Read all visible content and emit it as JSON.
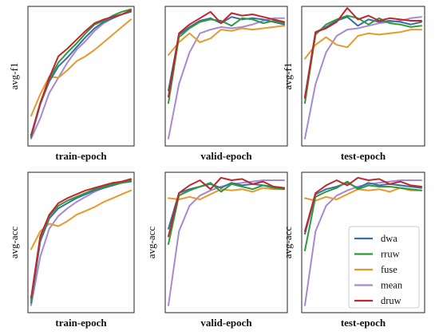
{
  "colors": {
    "dwa": "#3a6ea5",
    "rruw": "#2e9b3a",
    "fuse": "#e69a2e",
    "mean": "#a58ad0",
    "druw": "#c0272d"
  },
  "legend": {
    "placement": "bottom-right of last panel",
    "entries": [
      "dwa",
      "rruw",
      "fuse",
      "mean",
      "druw"
    ]
  },
  "chart_data": [
    {
      "type": "line",
      "title": "",
      "xlabel": "train-epoch",
      "ylabel": "avg-f1",
      "ylim": [
        0,
        1
      ],
      "x": [
        1,
        2,
        3,
        4,
        5,
        6,
        7,
        8,
        9,
        10,
        11,
        12
      ],
      "grid": false,
      "series": [
        {
          "name": "dwa",
          "values": [
            0.03,
            0.29,
            0.47,
            0.59,
            0.66,
            0.74,
            0.82,
            0.89,
            0.94,
            0.97,
            1.0,
            1.02
          ]
        },
        {
          "name": "rruw",
          "values": [
            0.04,
            0.3,
            0.49,
            0.62,
            0.7,
            0.77,
            0.85,
            0.92,
            0.95,
            0.99,
            1.02,
            1.04
          ]
        },
        {
          "name": "fuse",
          "values": [
            0.2,
            0.37,
            0.51,
            0.5,
            0.56,
            0.63,
            0.67,
            0.72,
            0.78,
            0.84,
            0.9,
            0.96
          ]
        },
        {
          "name": "mean",
          "values": [
            0.02,
            0.18,
            0.38,
            0.5,
            0.62,
            0.72,
            0.79,
            0.87,
            0.93,
            0.97,
            1.0,
            1.03
          ]
        },
        {
          "name": "druw",
          "values": [
            0.05,
            0.3,
            0.5,
            0.67,
            0.73,
            0.8,
            0.87,
            0.93,
            0.96,
            0.98,
            1.0,
            1.03
          ]
        }
      ]
    },
    {
      "type": "line",
      "title": "",
      "xlabel": "valid-epoch",
      "ylabel": "",
      "ylim": [
        0,
        1
      ],
      "x": [
        1,
        2,
        3,
        4,
        5,
        6,
        7,
        8,
        9,
        10,
        11,
        12
      ],
      "grid": false,
      "series": [
        {
          "name": "dwa",
          "values": [
            0.4,
            0.84,
            0.9,
            0.95,
            0.97,
            0.93,
            0.98,
            0.96,
            0.97,
            0.96,
            0.94,
            0.92
          ]
        },
        {
          "name": "rruw",
          "values": [
            0.3,
            0.82,
            0.89,
            0.94,
            0.96,
            0.95,
            0.91,
            0.97,
            0.96,
            0.93,
            0.95,
            0.93
          ]
        },
        {
          "name": "fuse",
          "values": [
            0.68,
            0.78,
            0.85,
            0.78,
            0.81,
            0.88,
            0.87,
            0.89,
            0.88,
            0.89,
            0.9,
            0.91
          ]
        },
        {
          "name": "mean",
          "values": [
            0.02,
            0.45,
            0.7,
            0.85,
            0.88,
            0.9,
            0.89,
            0.9,
            0.92,
            0.95,
            0.97,
            0.97
          ]
        },
        {
          "name": "druw",
          "values": [
            0.35,
            0.85,
            0.92,
            0.97,
            1.02,
            0.93,
            1.01,
            0.99,
            1.0,
            0.98,
            0.96,
            0.94
          ]
        }
      ]
    },
    {
      "type": "line",
      "title": "",
      "xlabel": "test-epoch",
      "ylabel": "avg-f1",
      "ylim": [
        0,
        1
      ],
      "x": [
        1,
        2,
        3,
        4,
        5,
        6,
        7,
        8,
        9,
        10,
        11,
        12
      ],
      "grid": false,
      "series": [
        {
          "name": "dwa",
          "values": [
            0.35,
            0.86,
            0.9,
            0.95,
            0.98,
            0.91,
            0.96,
            0.94,
            0.95,
            0.94,
            0.92,
            0.94
          ]
        },
        {
          "name": "rruw",
          "values": [
            0.3,
            0.84,
            0.92,
            0.96,
            0.99,
            0.97,
            0.92,
            0.97,
            0.93,
            0.92,
            0.9,
            0.91
          ]
        },
        {
          "name": "fuse",
          "values": [
            0.65,
            0.76,
            0.82,
            0.76,
            0.74,
            0.83,
            0.85,
            0.84,
            0.85,
            0.86,
            0.88,
            0.88
          ]
        },
        {
          "name": "mean",
          "values": [
            0.02,
            0.45,
            0.7,
            0.83,
            0.88,
            0.89,
            0.91,
            0.93,
            0.94,
            0.95,
            0.97,
            0.98
          ]
        },
        {
          "name": "druw",
          "values": [
            0.34,
            0.86,
            0.89,
            0.94,
            1.05,
            0.96,
            0.99,
            0.95,
            0.97,
            0.96,
            0.95,
            0.95
          ]
        }
      ]
    },
    {
      "type": "line",
      "title": "",
      "xlabel": "train-epoch",
      "ylabel": "avg-acc",
      "ylim": [
        0,
        1
      ],
      "x": [
        1,
        2,
        3,
        4,
        5,
        6,
        7,
        8,
        9,
        10,
        11,
        12
      ],
      "grid": false,
      "series": [
        {
          "name": "dwa",
          "values": [
            0.04,
            0.52,
            0.7,
            0.78,
            0.82,
            0.86,
            0.89,
            0.92,
            0.94,
            0.96,
            0.98,
            0.99
          ]
        },
        {
          "name": "rruw",
          "values": [
            0.06,
            0.55,
            0.72,
            0.8,
            0.84,
            0.87,
            0.9,
            0.93,
            0.95,
            0.97,
            0.98,
            1.0
          ]
        },
        {
          "name": "fuse",
          "values": [
            0.46,
            0.6,
            0.66,
            0.64,
            0.68,
            0.73,
            0.76,
            0.79,
            0.83,
            0.86,
            0.89,
            0.92
          ]
        },
        {
          "name": "mean",
          "values": [
            0.02,
            0.4,
            0.62,
            0.72,
            0.78,
            0.83,
            0.87,
            0.91,
            0.94,
            0.96,
            0.98,
            1.0
          ]
        },
        {
          "name": "druw",
          "values": [
            0.08,
            0.56,
            0.73,
            0.82,
            0.86,
            0.89,
            0.92,
            0.94,
            0.96,
            0.98,
            0.99,
            1.01
          ]
        }
      ]
    },
    {
      "type": "line",
      "title": "",
      "xlabel": "valid-epoch",
      "ylabel": "avg-acc",
      "ylim": [
        0,
        1
      ],
      "x": [
        1,
        2,
        3,
        4,
        5,
        6,
        7,
        8,
        9,
        10,
        11,
        12
      ],
      "grid": false,
      "series": [
        {
          "name": "dwa",
          "values": [
            0.62,
            0.9,
            0.93,
            0.95,
            0.97,
            0.94,
            0.98,
            0.96,
            0.97,
            0.96,
            0.95,
            0.94
          ]
        },
        {
          "name": "rruw",
          "values": [
            0.5,
            0.88,
            0.92,
            0.95,
            0.98,
            0.91,
            0.97,
            0.95,
            0.93,
            0.96,
            0.94,
            0.93
          ]
        },
        {
          "name": "fuse",
          "values": [
            0.86,
            0.85,
            0.87,
            0.85,
            0.89,
            0.93,
            0.92,
            0.93,
            0.91,
            0.94,
            0.93,
            0.93
          ]
        },
        {
          "name": "mean",
          "values": [
            0.02,
            0.6,
            0.8,
            0.88,
            0.92,
            0.95,
            0.97,
            0.98,
            0.99,
            1.0,
            1.0,
            1.0
          ]
        },
        {
          "name": "druw",
          "values": [
            0.56,
            0.9,
            0.96,
            1.0,
            0.93,
            1.02,
            1.0,
            1.01,
            0.97,
            0.99,
            0.95,
            0.94
          ]
        }
      ]
    },
    {
      "type": "line",
      "title": "",
      "xlabel": "test-epoch",
      "ylabel": "avg-acc",
      "ylim": [
        0,
        1
      ],
      "x": [
        1,
        2,
        3,
        4,
        5,
        6,
        7,
        8,
        9,
        10,
        11,
        12
      ],
      "grid": false,
      "series": [
        {
          "name": "dwa",
          "values": [
            0.58,
            0.89,
            0.93,
            0.95,
            0.98,
            0.94,
            0.98,
            0.96,
            0.97,
            0.96,
            0.95,
            0.94
          ]
        },
        {
          "name": "rruw",
          "values": [
            0.45,
            0.87,
            0.91,
            0.94,
            0.99,
            0.93,
            0.96,
            0.95,
            0.95,
            0.94,
            0.93,
            0.92
          ]
        },
        {
          "name": "fuse",
          "values": [
            0.86,
            0.84,
            0.87,
            0.85,
            0.89,
            0.93,
            0.92,
            0.93,
            0.91,
            0.94,
            0.92,
            0.92
          ]
        },
        {
          "name": "mean",
          "values": [
            0.02,
            0.6,
            0.8,
            0.88,
            0.92,
            0.95,
            0.97,
            0.98,
            0.99,
            1.0,
            1.0,
            1.0
          ]
        },
        {
          "name": "druw",
          "values": [
            0.6,
            0.9,
            0.96,
            1.0,
            0.96,
            1.02,
            1.0,
            1.01,
            0.97,
            0.99,
            0.96,
            0.95
          ]
        }
      ]
    }
  ]
}
